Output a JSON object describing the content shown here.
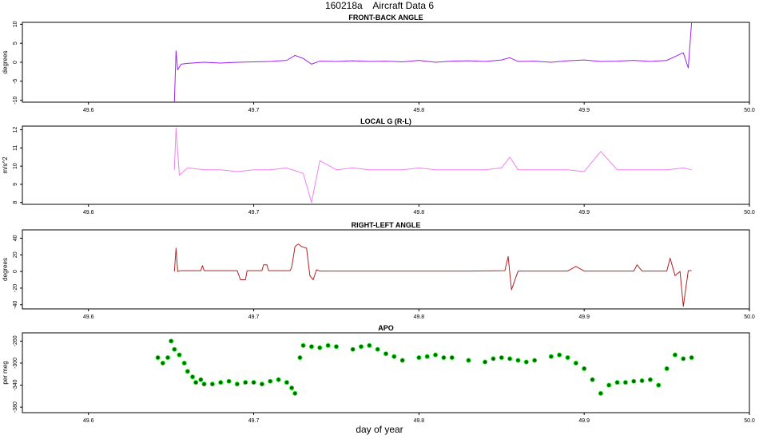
{
  "figure": {
    "title": "160218a    Aircraft Data 6",
    "xlabel": "day of year"
  },
  "chart_data": [
    {
      "type": "line",
      "title": "FRONT-BACK ANGLE",
      "ylabel": "degrees",
      "color": "#a020f0",
      "xlim": [
        49.56,
        50.0
      ],
      "ylim": [
        -10.5,
        10.5
      ],
      "x_ticks": [
        "49.6",
        "49.7",
        "49.8",
        "49.9",
        "50.0"
      ],
      "y_ticks": [
        "-10",
        "-5",
        "0",
        "5",
        "10"
      ],
      "series": [
        {
          "x": [
            49.652,
            49.653,
            49.654,
            49.656,
            49.66,
            49.67,
            49.68,
            49.69,
            49.7,
            49.71,
            49.72,
            49.725,
            49.73,
            49.735,
            49.74,
            49.75,
            49.76,
            49.77,
            49.78,
            49.79,
            49.8,
            49.81,
            49.82,
            49.83,
            49.84,
            49.85,
            49.855,
            49.86,
            49.87,
            49.88,
            49.89,
            49.9,
            49.91,
            49.92,
            49.93,
            49.94,
            49.95,
            49.955,
            49.96,
            49.963,
            49.965
          ],
          "y": [
            -10.5,
            3,
            -2,
            -0.5,
            -0.3,
            0,
            -0.2,
            0,
            0.1,
            0.2,
            0.5,
            1.8,
            1,
            -0.5,
            0.3,
            0.2,
            0.4,
            0.2,
            0.3,
            0.1,
            0.5,
            0,
            0.3,
            0.4,
            0.2,
            0.6,
            1.2,
            0.2,
            0.3,
            0,
            0.4,
            0.6,
            0.2,
            0.3,
            0.5,
            0.2,
            0.5,
            1.5,
            2.5,
            -1.5,
            10.5
          ]
        }
      ]
    },
    {
      "type": "line",
      "title": "LOCAL G (R-L)",
      "ylabel": "m/s^2",
      "color": "#ee82ee",
      "xlim": [
        49.56,
        50.0
      ],
      "ylim": [
        7.9,
        12.2
      ],
      "x_ticks": [
        "49.6",
        "49.7",
        "49.8",
        "49.9",
        "50.0"
      ],
      "y_ticks": [
        "8",
        "9",
        "10",
        "11",
        "12"
      ],
      "series": [
        {
          "x": [
            49.652,
            49.653,
            49.655,
            49.66,
            49.67,
            49.68,
            49.69,
            49.7,
            49.71,
            49.72,
            49.73,
            49.735,
            49.74,
            49.75,
            49.76,
            49.77,
            49.78,
            49.79,
            49.8,
            49.81,
            49.82,
            49.83,
            49.84,
            49.85,
            49.855,
            49.86,
            49.87,
            49.88,
            49.89,
            49.9,
            49.91,
            49.92,
            49.93,
            49.94,
            49.95,
            49.96,
            49.965
          ],
          "y": [
            9.8,
            12.1,
            9.5,
            9.9,
            9.8,
            9.8,
            9.7,
            9.8,
            9.8,
            9.9,
            9.6,
            8.0,
            10.3,
            9.8,
            9.9,
            9.8,
            9.8,
            9.8,
            9.9,
            9.8,
            9.8,
            9.8,
            9.8,
            9.9,
            10.5,
            9.8,
            9.8,
            9.8,
            9.8,
            9.7,
            10.8,
            9.8,
            9.8,
            9.8,
            9.8,
            9.9,
            9.8
          ]
        }
      ]
    },
    {
      "type": "line",
      "title": "RIGHT-LEFT ANGLE",
      "ylabel": "degrees",
      "color": "#b22222",
      "xlim": [
        49.56,
        50.0
      ],
      "ylim": [
        -45,
        50
      ],
      "x_ticks": [
        "49.6",
        "49.7",
        "49.8",
        "49.9",
        "50.0"
      ],
      "y_ticks": [
        "-40",
        "-20",
        "0",
        "20",
        "40"
      ],
      "series": [
        {
          "x": [
            49.652,
            49.653,
            49.654,
            49.656,
            49.668,
            49.669,
            49.67,
            49.69,
            49.692,
            49.695,
            49.696,
            49.705,
            49.706,
            49.708,
            49.709,
            49.722,
            49.723,
            49.725,
            49.727,
            49.729,
            49.732,
            49.734,
            49.736,
            49.738,
            49.74,
            49.75,
            49.78,
            49.8,
            49.83,
            49.852,
            49.854,
            49.856,
            49.86,
            49.89,
            49.895,
            49.9,
            49.93,
            49.932,
            49.935,
            49.95,
            49.952,
            49.955,
            49.958,
            49.96,
            49.963,
            49.965
          ],
          "y": [
            0,
            28,
            0,
            1,
            1,
            7,
            1,
            1,
            -10,
            -10,
            1,
            1,
            8,
            8,
            1,
            1,
            5,
            30,
            33,
            30,
            28,
            -5,
            -10,
            2,
            0.5,
            0.5,
            0.5,
            0.5,
            0.5,
            1,
            18,
            -22,
            0.5,
            0.5,
            6,
            0.5,
            0.5,
            8,
            0.5,
            0.5,
            16,
            -5,
            0,
            -42,
            1,
            1
          ]
        }
      ]
    },
    {
      "type": "scatter",
      "title": "APO",
      "ylabel": "per meg",
      "colors": [
        "#00ff00",
        "#006400"
      ],
      "xlim": [
        49.56,
        50.0
      ],
      "ylim": [
        -390,
        -245
      ],
      "x_ticks": [
        "49.6",
        "49.7",
        "49.8",
        "49.9",
        "50.0"
      ],
      "y_ticks": [
        "-380",
        "-340",
        "-300",
        "-260"
      ],
      "series": [
        {
          "x": [
            49.642,
            49.645,
            49.648,
            49.65,
            49.652,
            49.655,
            49.658,
            49.66,
            49.663,
            49.665,
            49.668,
            49.67,
            49.675,
            49.68,
            49.685,
            49.69,
            49.695,
            49.7,
            49.705,
            49.71,
            49.715,
            49.72,
            49.723,
            49.725,
            49.728,
            49.73,
            49.735,
            49.74,
            49.745,
            49.75,
            49.76,
            49.765,
            49.77,
            49.775,
            49.78,
            49.785,
            49.79,
            49.8,
            49.805,
            49.81,
            49.815,
            49.82,
            49.83,
            49.84,
            49.845,
            49.85,
            49.855,
            49.86,
            49.865,
            49.87,
            49.88,
            49.885,
            49.89,
            49.895,
            49.9,
            49.905,
            49.91,
            49.915,
            49.92,
            49.925,
            49.93,
            49.935,
            49.94,
            49.945,
            49.95,
            49.955,
            49.96,
            49.965
          ],
          "y": [
            -290,
            -300,
            -290,
            -260,
            -275,
            -285,
            -300,
            -315,
            -325,
            -335,
            -330,
            -338,
            -338,
            -335,
            -333,
            -338,
            -335,
            -335,
            -338,
            -333,
            -330,
            -335,
            -345,
            -355,
            -290,
            -268,
            -270,
            -272,
            -268,
            -270,
            -275,
            -270,
            -268,
            -275,
            -283,
            -288,
            -295,
            -290,
            -288,
            -285,
            -290,
            -290,
            -295,
            -298,
            -292,
            -290,
            -292,
            -295,
            -298,
            -295,
            -288,
            -285,
            -290,
            -300,
            -310,
            -330,
            -355,
            -340,
            -335,
            -335,
            -333,
            -332,
            -330,
            -340,
            -310,
            -285,
            -292,
            -290
          ]
        }
      ]
    }
  ]
}
